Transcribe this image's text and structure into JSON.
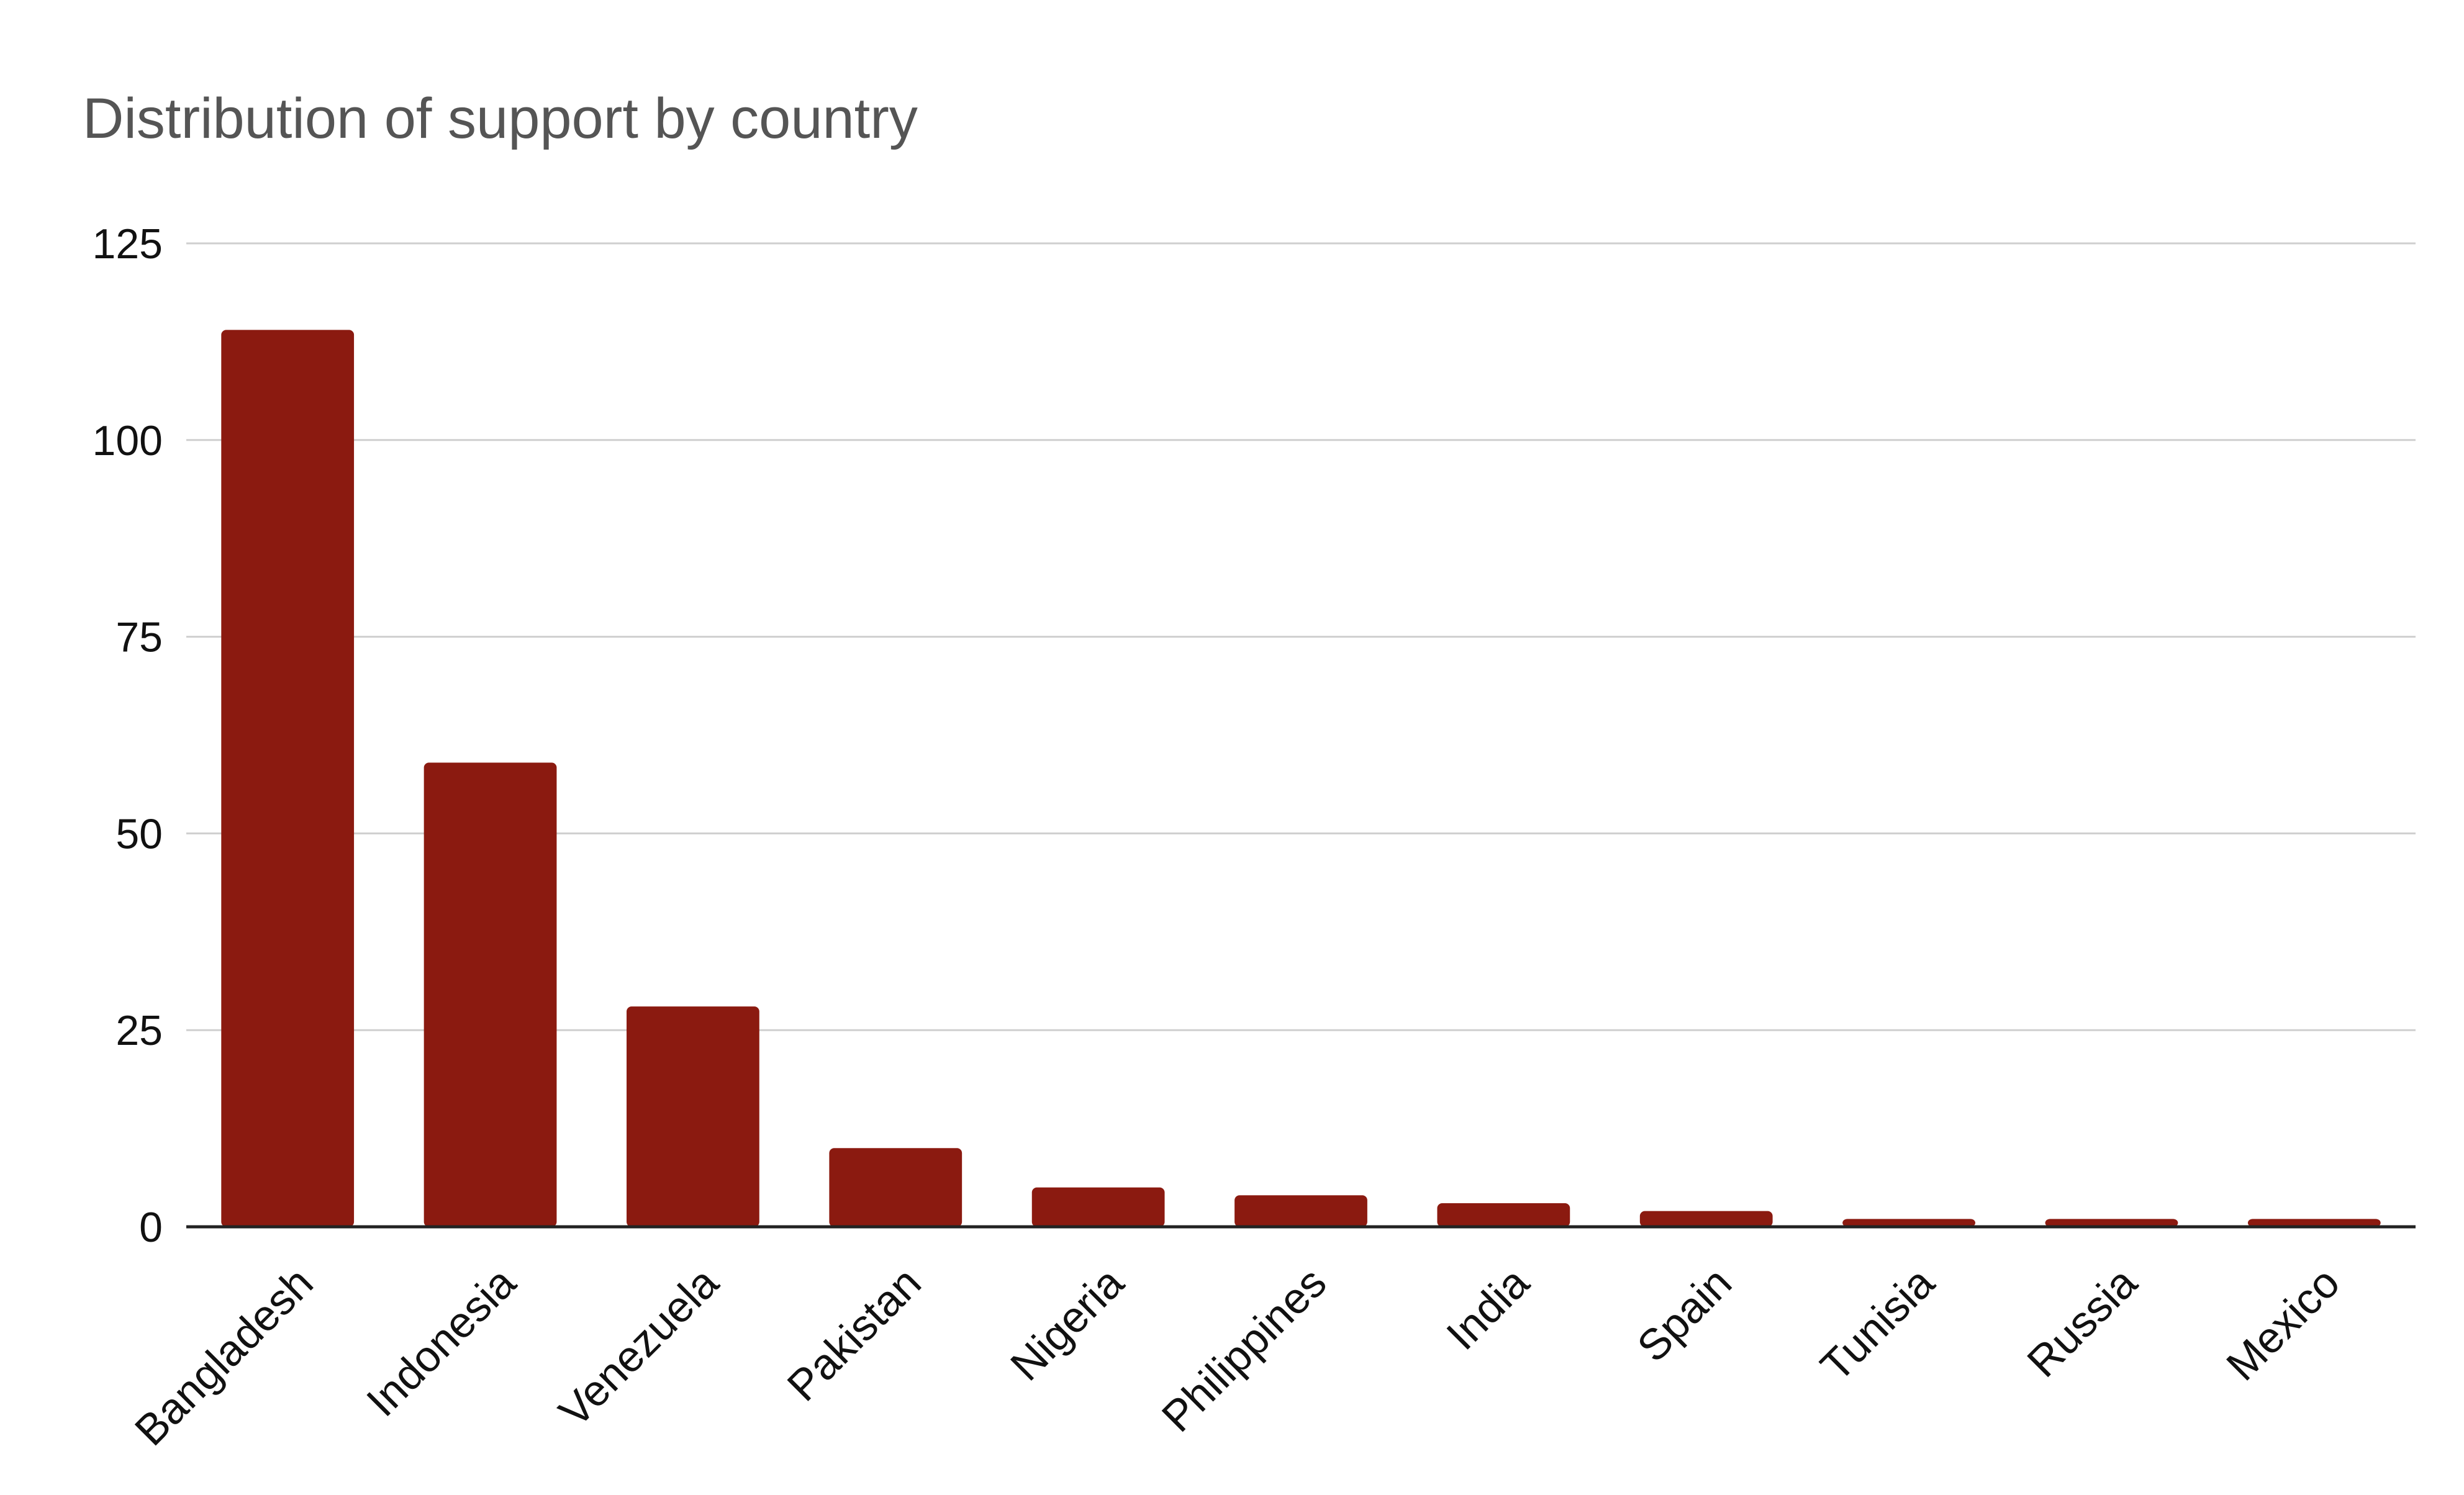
{
  "chart_data": {
    "type": "bar",
    "title": "Distribution of support by country",
    "xlabel": "",
    "ylabel": "",
    "categories": [
      "Bangladesh",
      "Indonesia",
      "Venezuela",
      "Pakistan",
      "Nigeria",
      "Philippines",
      "India",
      "Spain",
      "Tunisia",
      "Russia",
      "Mexico"
    ],
    "values": [
      114,
      59,
      28,
      10,
      5,
      4,
      3,
      2,
      1,
      1,
      1
    ],
    "ylim": [
      0,
      125
    ],
    "yticks": [
      "0",
      "25",
      "50",
      "75",
      "100",
      "125"
    ],
    "grid": true,
    "legend": "none",
    "colors": {
      "bar": "#8b1a10",
      "grid": "#cfcfcf",
      "axis": "#222222",
      "title": "#555555",
      "text": "#111111"
    }
  }
}
